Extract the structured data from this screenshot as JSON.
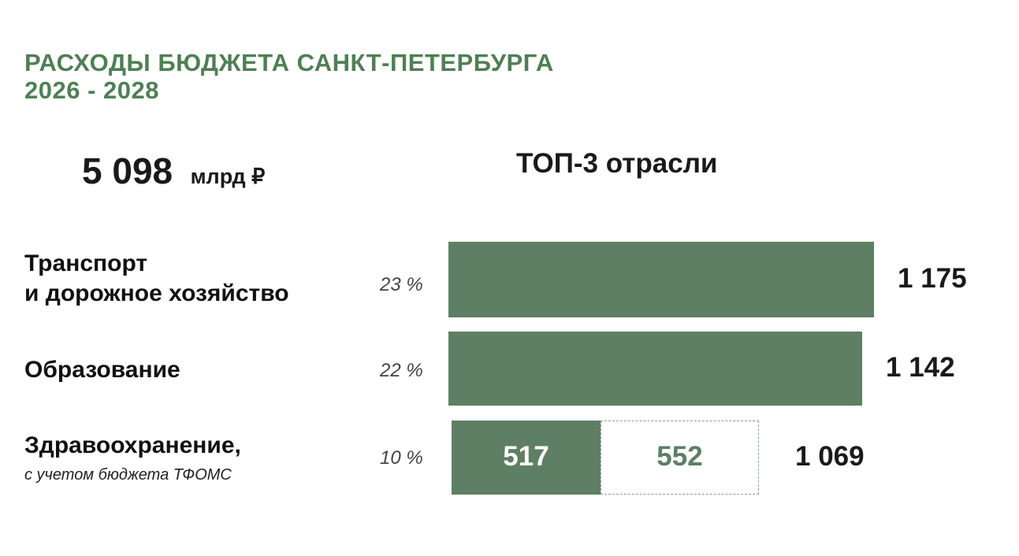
{
  "header": {
    "title_line1": "РАСХОДЫ БЮДЖЕТА САНКТ-ПЕТЕРБУРГА",
    "title_line2": "2026 - 2028",
    "total_value": "5 098",
    "total_unit": "млрд ₽",
    "top_heading": "ТОП-3 отрасли"
  },
  "colors": {
    "title": "#4f7f55",
    "bar": "#5e7f63",
    "secondary_value": "#5e7f63",
    "segment_value": "#ffffff"
  },
  "chart_data": {
    "type": "bar",
    "orientation": "horizontal",
    "title": "ТОП-3 отрасли",
    "unit": "млрд ₽",
    "categories": [
      {
        "label_lines": [
          "Транспорт",
          "и дорожное хозяйство"
        ],
        "note": "",
        "share": "23 %",
        "value": 1175,
        "value_label": "1 175",
        "segments": []
      },
      {
        "label_lines": [
          "Образование"
        ],
        "note": "",
        "share": "22 %",
        "value": 1142,
        "value_label": "1 142",
        "segments": []
      },
      {
        "label_lines": [
          "Здравоохранение,"
        ],
        "note": "с учетом бюджета ТФОМС",
        "share": "10 %",
        "value": 1069,
        "value_label": "1 069",
        "segments": [
          {
            "value": 517,
            "label": "517",
            "style": "solid"
          },
          {
            "value": 552,
            "label": "552",
            "style": "dashed-outline"
          }
        ]
      }
    ],
    "grid": false,
    "legend": "none"
  }
}
